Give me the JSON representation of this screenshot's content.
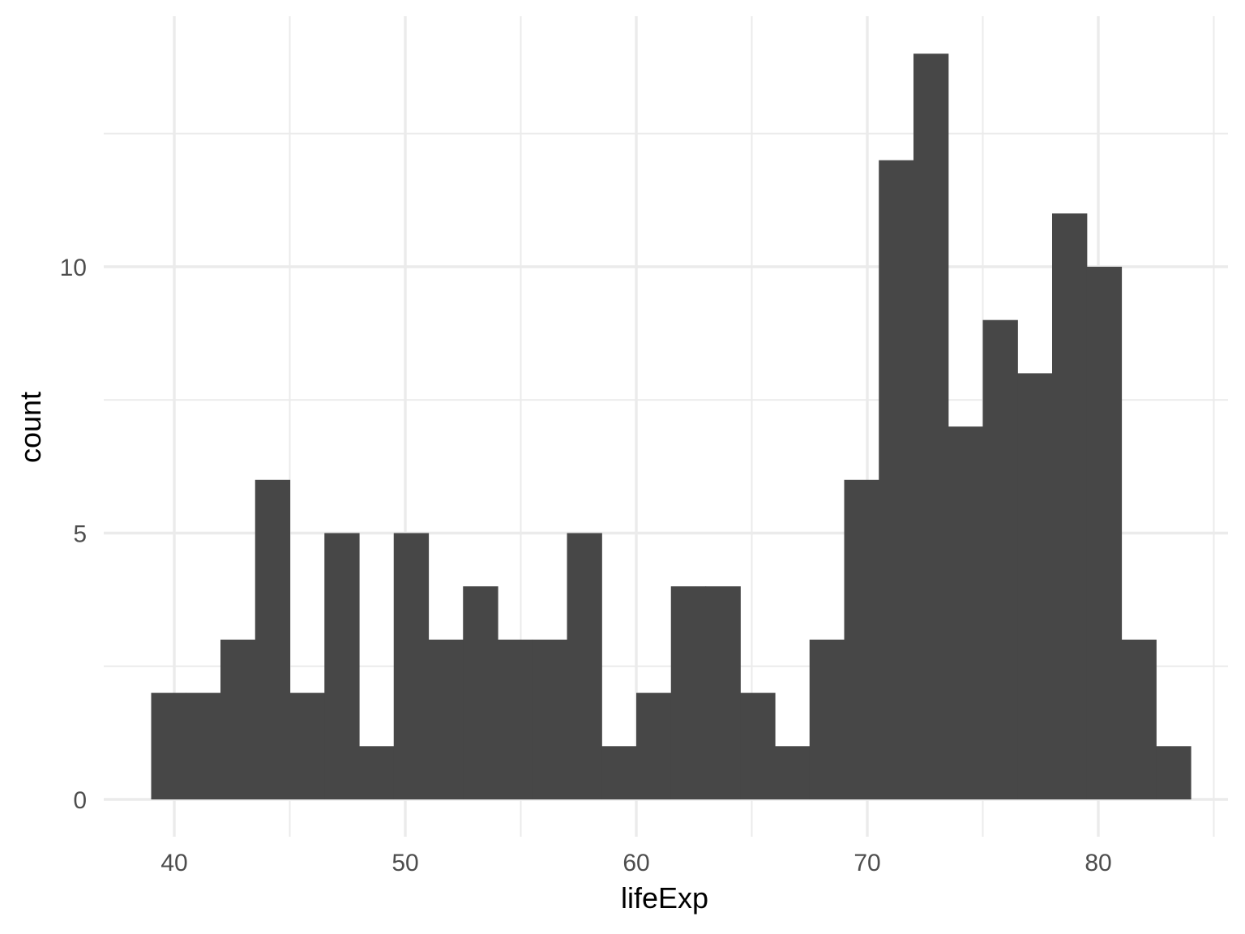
{
  "chart_data": {
    "type": "bar",
    "title": "",
    "xlabel": "lifeExp",
    "ylabel": "count",
    "xlim": [
      36.0,
      85.5
    ],
    "ylim": [
      0,
      15
    ],
    "x_ticks": [
      40,
      50,
      60,
      70,
      80
    ],
    "x_tick_labels": [
      "40",
      "50",
      "60",
      "70",
      "80"
    ],
    "y_ticks": [
      0,
      5,
      10
    ],
    "y_tick_labels": [
      "0",
      "5",
      "10"
    ],
    "grid": true,
    "legend": "none",
    "bar_color": "#474747",
    "grid_color": "#ebebeb",
    "bins": [
      {
        "x0": 39.0,
        "x1": 40.5,
        "count": 2
      },
      {
        "x0": 40.5,
        "x1": 42.0,
        "count": 2
      },
      {
        "x0": 42.0,
        "x1": 43.5,
        "count": 3
      },
      {
        "x0": 43.5,
        "x1": 45.0,
        "count": 6
      },
      {
        "x0": 45.0,
        "x1": 46.5,
        "count": 2
      },
      {
        "x0": 46.5,
        "x1": 48.0,
        "count": 5
      },
      {
        "x0": 48.0,
        "x1": 49.5,
        "count": 1
      },
      {
        "x0": 49.5,
        "x1": 51.0,
        "count": 5
      },
      {
        "x0": 51.0,
        "x1": 52.5,
        "count": 3
      },
      {
        "x0": 52.5,
        "x1": 54.0,
        "count": 4
      },
      {
        "x0": 54.0,
        "x1": 55.5,
        "count": 3
      },
      {
        "x0": 55.5,
        "x1": 57.0,
        "count": 3
      },
      {
        "x0": 57.0,
        "x1": 58.5,
        "count": 5
      },
      {
        "x0": 58.5,
        "x1": 60.0,
        "count": 1
      },
      {
        "x0": 60.0,
        "x1": 61.5,
        "count": 2
      },
      {
        "x0": 61.5,
        "x1": 63.0,
        "count": 4
      },
      {
        "x0": 63.0,
        "x1": 64.5,
        "count": 4
      },
      {
        "x0": 64.5,
        "x1": 66.0,
        "count": 2
      },
      {
        "x0": 66.0,
        "x1": 67.5,
        "count": 1
      },
      {
        "x0": 67.5,
        "x1": 69.0,
        "count": 3
      },
      {
        "x0": 69.0,
        "x1": 70.5,
        "count": 6
      },
      {
        "x0": 70.5,
        "x1": 72.0,
        "count": 12
      },
      {
        "x0": 72.0,
        "x1": 73.5,
        "count": 14
      },
      {
        "x0": 73.5,
        "x1": 75.0,
        "count": 7
      },
      {
        "x0": 75.0,
        "x1": 76.5,
        "count": 9
      },
      {
        "x0": 76.5,
        "x1": 78.0,
        "count": 8
      },
      {
        "x0": 78.0,
        "x1": 79.5,
        "count": 11
      },
      {
        "x0": 79.5,
        "x1": 81.0,
        "count": 10
      },
      {
        "x0": 81.0,
        "x1": 82.5,
        "count": 3
      },
      {
        "x0": 82.5,
        "x1": 84.0,
        "count": 1
      }
    ]
  }
}
